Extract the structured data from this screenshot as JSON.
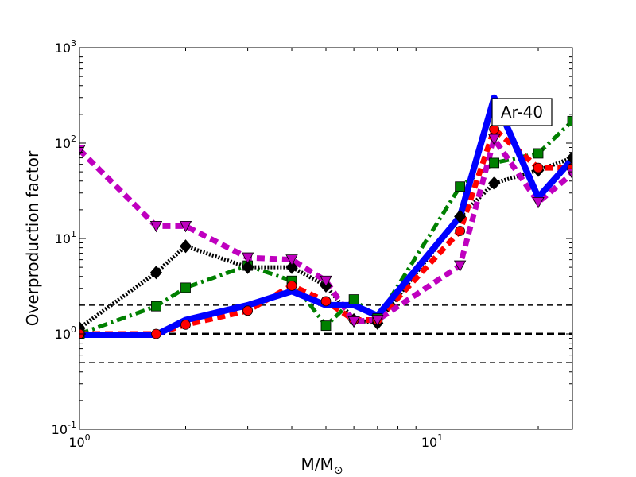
{
  "chart_data": {
    "type": "line",
    "xlabel": "M/M",
    "xlabel_sub": "⊙",
    "ylabel": "Overproduction factor",
    "x_scale": "log",
    "y_scale": "log",
    "xlim": [
      1,
      25
    ],
    "ylim": [
      0.1,
      1000
    ],
    "x_ticks": [
      {
        "value": 1,
        "base": "10",
        "exp": "0"
      },
      {
        "value": 10,
        "base": "10",
        "exp": "1"
      }
    ],
    "y_ticks": [
      {
        "value": 0.1,
        "base": "10",
        "exp": "-1"
      },
      {
        "value": 1,
        "base": "10",
        "exp": "0"
      },
      {
        "value": 10,
        "base": "10",
        "exp": "1"
      },
      {
        "value": 100,
        "base": "10",
        "exp": "2"
      },
      {
        "value": 1000,
        "base": "10",
        "exp": "3"
      }
    ],
    "annotation": "Ar-40",
    "reference_lines": [
      {
        "y": 2,
        "style": "dashed"
      },
      {
        "y": 1,
        "style": "dashed-thick"
      },
      {
        "y": 0.5,
        "style": "dashed"
      }
    ],
    "series": [
      {
        "color": "#008000",
        "dash": "dashdot",
        "width": 5,
        "marker": "square",
        "x": [
          1,
          1.65,
          2,
          3,
          4,
          5,
          6,
          7,
          12,
          15,
          20,
          25
        ],
        "y": [
          1.0,
          1.95,
          3.05,
          5.2,
          3.6,
          1.22,
          2.3,
          1.45,
          35,
          62,
          78,
          170
        ]
      },
      {
        "color": "#000000",
        "dash": "dotted",
        "width": 5,
        "marker": "diamond",
        "x": [
          1,
          1.65,
          2,
          3,
          4,
          5,
          6,
          7,
          12,
          15,
          20,
          25
        ],
        "y": [
          1.15,
          4.4,
          8.3,
          5.0,
          5.0,
          3.2,
          1.4,
          1.3,
          17,
          38,
          52,
          70
        ]
      },
      {
        "color": "#ff0000",
        "dash": "dashed",
        "width": 7,
        "marker": "circle",
        "x": [
          1,
          1.65,
          2,
          3,
          4,
          5,
          6,
          7,
          12,
          15,
          20,
          25
        ],
        "y": [
          1.0,
          1.0,
          1.25,
          1.75,
          3.2,
          2.2,
          1.4,
          1.4,
          12,
          140,
          55,
          55
        ]
      },
      {
        "color": "#bf00bf",
        "dash": "dashed",
        "width": 7,
        "marker": "triangle-down",
        "x": [
          1,
          1.65,
          2,
          3,
          4,
          5,
          6,
          7,
          12,
          15,
          20,
          25
        ],
        "y": [
          85,
          13.5,
          13.5,
          6.3,
          6.0,
          3.6,
          1.35,
          1.4,
          5.2,
          110,
          24,
          48
        ]
      },
      {
        "color": "#0000ff",
        "dash": "solid",
        "width": 8,
        "marker": "none",
        "x": [
          1,
          1.65,
          2,
          3,
          4,
          5,
          6,
          7,
          12,
          15,
          20,
          25
        ],
        "y": [
          0.98,
          0.98,
          1.4,
          2.0,
          2.8,
          2.0,
          2.0,
          1.55,
          17,
          300,
          27,
          68
        ]
      }
    ]
  }
}
